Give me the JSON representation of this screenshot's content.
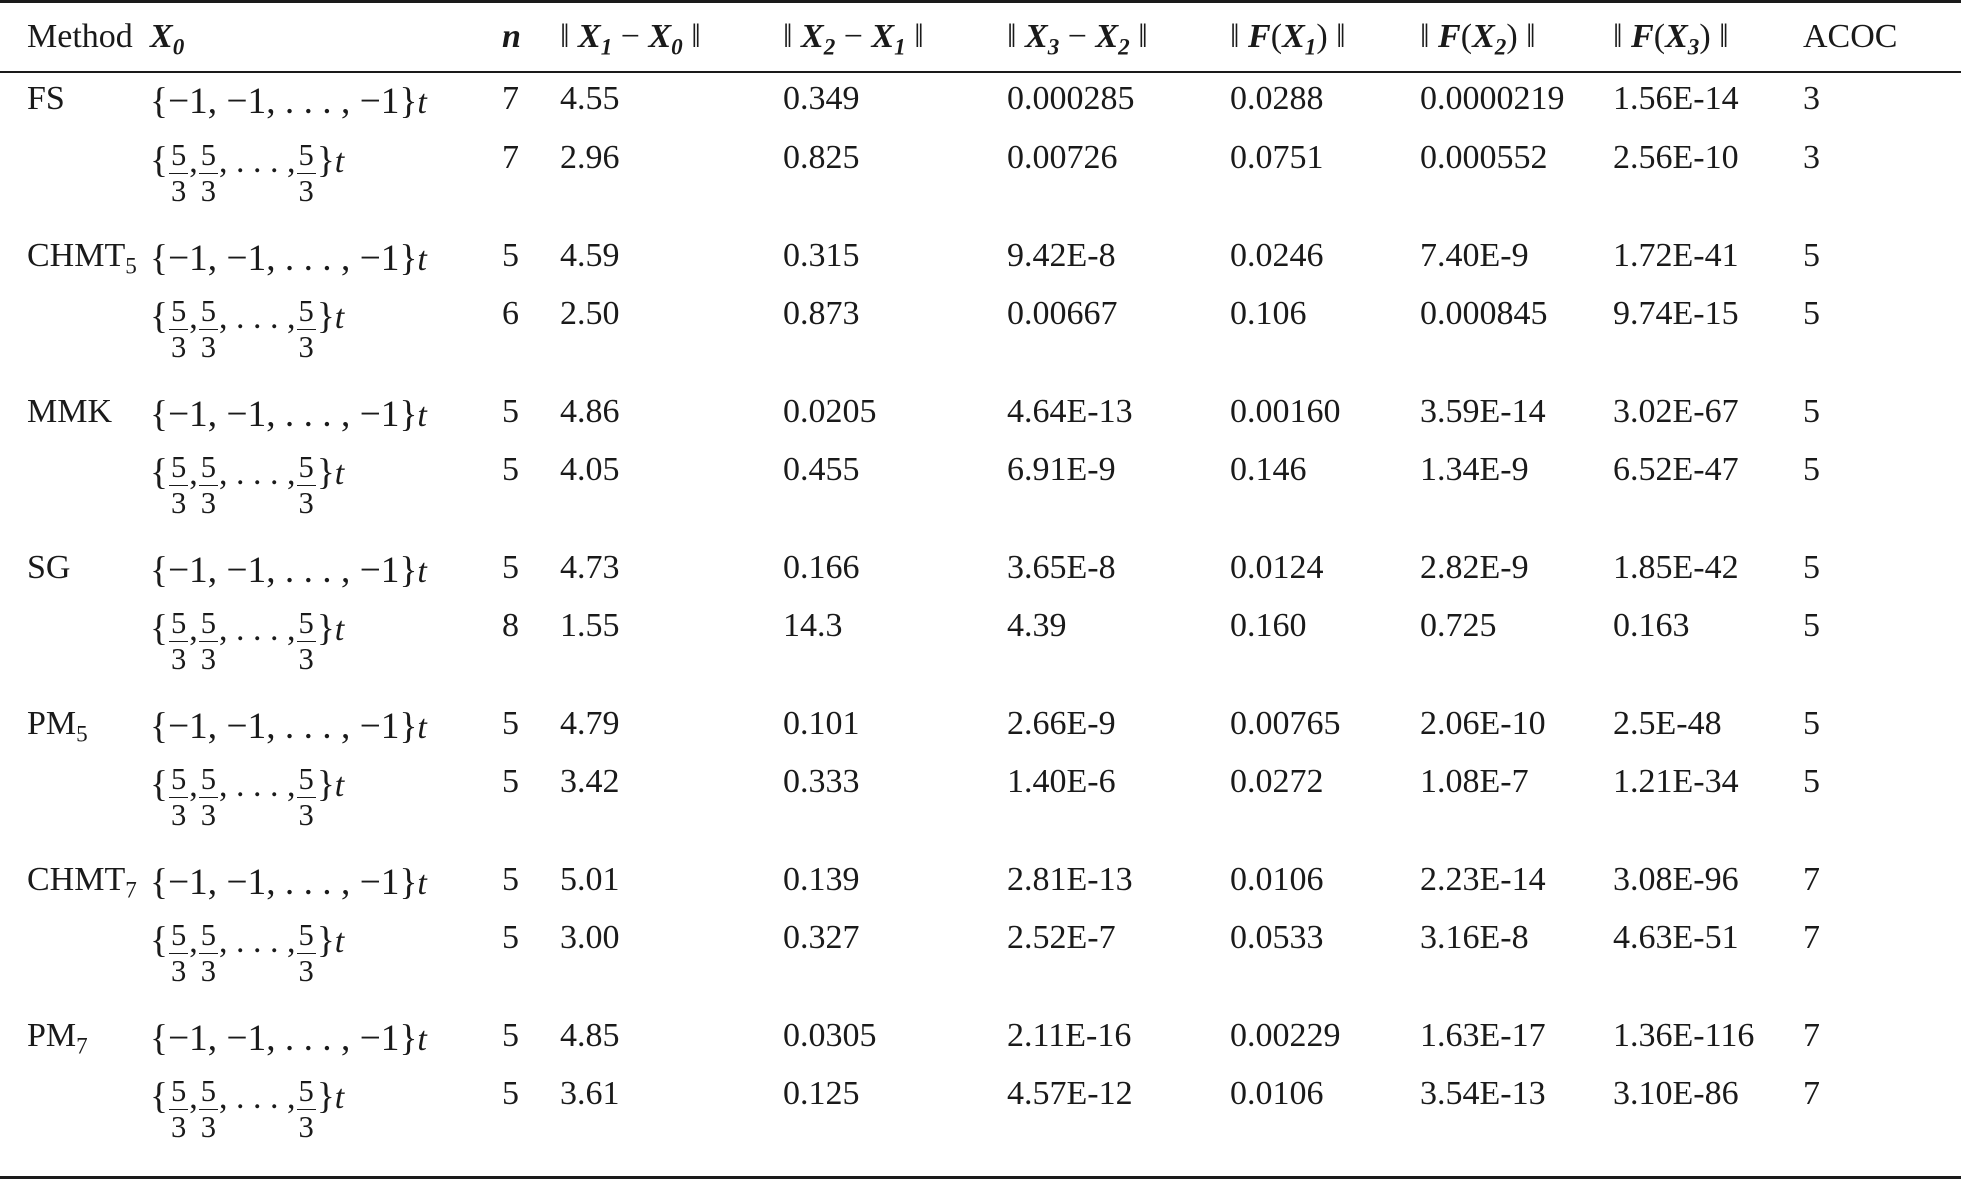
{
  "columns": {
    "method": "Method",
    "x0": {
      "base": "X",
      "sub": "0"
    },
    "n": "n",
    "diff1": {
      "open": "‖ ",
      "a": "X",
      "a_sub": "1",
      "op": " − ",
      "b": "X",
      "b_sub": "0",
      "close": " ‖"
    },
    "diff2": {
      "open": "‖ ",
      "a": "X",
      "a_sub": "2",
      "op": " − ",
      "b": "X",
      "b_sub": "1",
      "close": " ‖"
    },
    "diff3": {
      "open": "‖ ",
      "a": "X",
      "a_sub": "3",
      "op": " − ",
      "b": "X",
      "b_sub": "2",
      "close": " ‖"
    },
    "f1": {
      "open": "‖ ",
      "f": "F",
      "lp": "(",
      "x": "X",
      "x_sub": "1",
      "rp": ")",
      "close": " ‖"
    },
    "f2": {
      "open": "‖ ",
      "f": "F",
      "lp": "(",
      "x": "X",
      "x_sub": "2",
      "rp": ")",
      "close": " ‖"
    },
    "f3": {
      "open": "‖ ",
      "f": "F",
      "lp": "(",
      "x": "X",
      "x_sub": "3",
      "rp": ")",
      "close": " ‖"
    },
    "acoc": "ACOC"
  },
  "x0_values": {
    "neg_one": "{−1, −1, . . . , −1}",
    "frac_num": "5",
    "frac_den": "3",
    "open": "{",
    "close": "}",
    "sep": ",",
    "dots": ", . . . ,",
    "t": "t"
  },
  "rows": [
    {
      "method": "FS",
      "method_sub": "",
      "neg": {
        "n": "7",
        "d1": "4.55",
        "d2": "0.349",
        "d3": "0.000285",
        "f1": "0.0288",
        "f2": "0.0000219",
        "f3": "1.56E-14",
        "acoc": "3"
      },
      "frac": {
        "n": "7",
        "d1": "2.96",
        "d2": "0.825",
        "d3": "0.00726",
        "f1": "0.0751",
        "f2": "0.000552",
        "f3": "2.56E-10",
        "acoc": "3"
      }
    },
    {
      "method": "CHMT",
      "method_sub": "5",
      "neg": {
        "n": "5",
        "d1": "4.59",
        "d2": "0.315",
        "d3": "9.42E-8",
        "f1": "0.0246",
        "f2": "7.40E-9",
        "f3": "1.72E-41",
        "acoc": "5"
      },
      "frac": {
        "n": "6",
        "d1": "2.50",
        "d2": "0.873",
        "d3": "0.00667",
        "f1": "0.106",
        "f2": "0.000845",
        "f3": "9.74E-15",
        "acoc": "5"
      }
    },
    {
      "method": "MMK",
      "method_sub": "",
      "neg": {
        "n": "5",
        "d1": "4.86",
        "d2": "0.0205",
        "d3": "4.64E-13",
        "f1": "0.00160",
        "f2": "3.59E-14",
        "f3": "3.02E-67",
        "acoc": "5"
      },
      "frac": {
        "n": "5",
        "d1": "4.05",
        "d2": "0.455",
        "d3": "6.91E-9",
        "f1": "0.146",
        "f2": "1.34E-9",
        "f3": "6.52E-47",
        "acoc": "5"
      }
    },
    {
      "method": "SG",
      "method_sub": "",
      "neg": {
        "n": "5",
        "d1": "4.73",
        "d2": "0.166",
        "d3": "3.65E-8",
        "f1": "0.0124",
        "f2": "2.82E-9",
        "f3": "1.85E-42",
        "acoc": "5"
      },
      "frac": {
        "n": "8",
        "d1": "1.55",
        "d2": "14.3",
        "d3": "4.39",
        "f1": "0.160",
        "f2": "0.725",
        "f3": "0.163",
        "acoc": "5"
      }
    },
    {
      "method": "PM",
      "method_sub": "5",
      "neg": {
        "n": "5",
        "d1": "4.79",
        "d2": "0.101",
        "d3": "2.66E-9",
        "f1": "0.00765",
        "f2": "2.06E-10",
        "f3": "2.5E-48",
        "acoc": "5"
      },
      "frac": {
        "n": "5",
        "d1": "3.42",
        "d2": "0.333",
        "d3": "1.40E-6",
        "f1": "0.0272",
        "f2": "1.08E-7",
        "f3": "1.21E-34",
        "acoc": "5"
      }
    },
    {
      "method": "CHMT",
      "method_sub": "7",
      "neg": {
        "n": "5",
        "d1": "5.01",
        "d2": "0.139",
        "d3": "2.81E-13",
        "f1": "0.0106",
        "f2": "2.23E-14",
        "f3": "3.08E-96",
        "acoc": "7"
      },
      "frac": {
        "n": "5",
        "d1": "3.00",
        "d2": "0.327",
        "d3": "2.52E-7",
        "f1": "0.0533",
        "f2": "3.16E-8",
        "f3": "4.63E-51",
        "acoc": "7"
      }
    },
    {
      "method": "PM",
      "method_sub": "7",
      "neg": {
        "n": "5",
        "d1": "4.85",
        "d2": "0.0305",
        "d3": "2.11E-16",
        "f1": "0.00229",
        "f2": "1.63E-17",
        "f3": "1.36E-116",
        "acoc": "7"
      },
      "frac": {
        "n": "5",
        "d1": "3.61",
        "d2": "0.125",
        "d3": "4.57E-12",
        "f1": "0.0106",
        "f2": "3.54E-13",
        "f3": "3.10E-86",
        "acoc": "7"
      }
    }
  ]
}
